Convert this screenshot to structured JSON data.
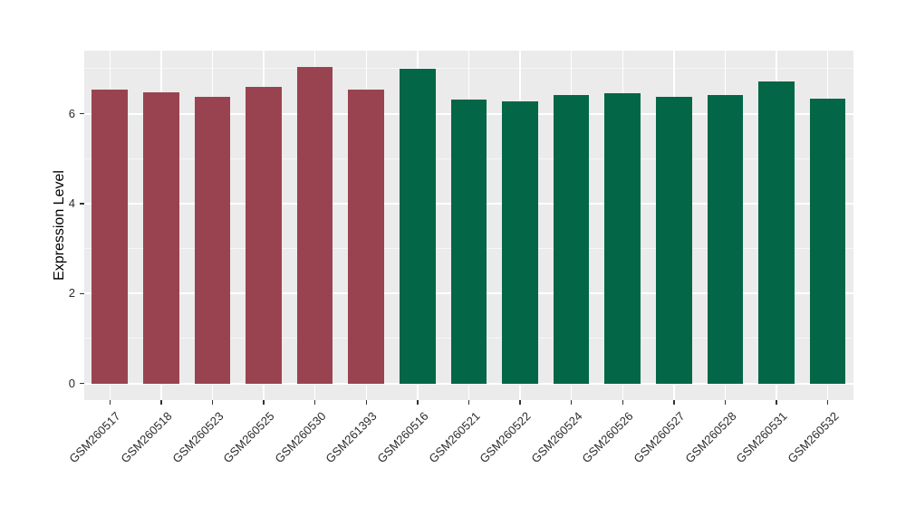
{
  "figure": {
    "background": "#ffffff"
  },
  "chart_data": {
    "type": "bar",
    "title": "",
    "xlabel": "",
    "ylabel": "Expression Level",
    "categories": [
      "GSM260517",
      "GSM260518",
      "GSM260523",
      "GSM260525",
      "GSM260530",
      "GSM261393",
      "GSM260516",
      "GSM260521",
      "GSM260522",
      "GSM260524",
      "GSM260526",
      "GSM260527",
      "GSM260528",
      "GSM260531",
      "GSM260532"
    ],
    "values": [
      6.53,
      6.48,
      6.38,
      6.59,
      7.03,
      6.53,
      7.0,
      6.31,
      6.27,
      6.41,
      6.45,
      6.38,
      6.42,
      6.71,
      6.33
    ],
    "bar_groups": [
      "group1",
      "group1",
      "group1",
      "group1",
      "group1",
      "group1",
      "group2",
      "group2",
      "group2",
      "group2",
      "group2",
      "group2",
      "group2",
      "group2",
      "group2"
    ],
    "group_colors": {
      "group1": "#9A4350",
      "group2": "#026647"
    },
    "yticks": [
      0,
      2,
      4,
      6
    ],
    "ytick_labels": [
      "0",
      "2",
      "4",
      "6"
    ],
    "yticks_minor": [
      1,
      3,
      5,
      7
    ],
    "ylim": [
      0,
      7.03
    ],
    "panel_range": [
      -0.37,
      7.4
    ],
    "bar_width_ratio": 0.7,
    "grid": "on",
    "legend": "none",
    "style": {
      "panel_background": "#EBEBEB",
      "grid_major_color": "#FFFFFF",
      "grid_minor_color": "#F7F7F7",
      "tick_color": "#333333",
      "label_color": "#2b2b2b",
      "title_color": "#000000"
    }
  }
}
